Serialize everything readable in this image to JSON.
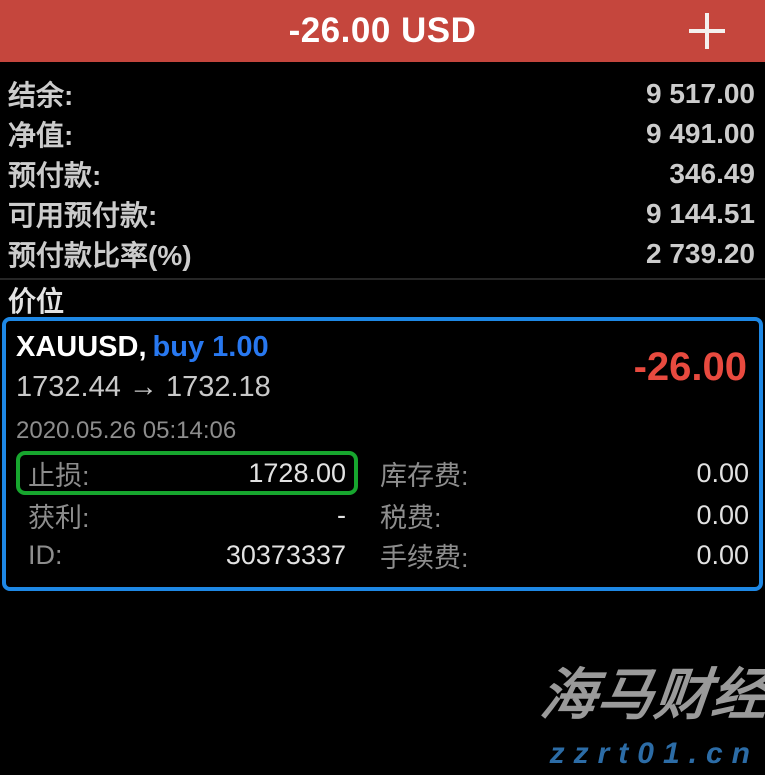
{
  "header": {
    "title": "-26.00 USD",
    "add_button": "new-order"
  },
  "account": {
    "rows": [
      {
        "label": "结余:",
        "value": "9 517.00"
      },
      {
        "label": "净值:",
        "value": "9 491.00"
      },
      {
        "label": "预付款:",
        "value": "346.49"
      },
      {
        "label": "可用预付款:",
        "value": "9 144.51"
      },
      {
        "label": "预付款比率(%)",
        "value": "2 739.20"
      }
    ]
  },
  "positions": {
    "section_title": "价位"
  },
  "position": {
    "symbol": "XAUUSD,",
    "direction": "buy 1.00",
    "profit": "-26.00",
    "open_price": "1732.44",
    "arrow": "→",
    "current_price": "1732.18",
    "datetime": "2020.05.26 05:14:06",
    "details_left": [
      {
        "label": "止损:",
        "value": "1728.00"
      },
      {
        "label": "获利:",
        "value": "-"
      },
      {
        "label": "ID:",
        "value": "30373337"
      }
    ],
    "details_right": [
      {
        "label": "库存费:",
        "value": "0.00"
      },
      {
        "label": "税费:",
        "value": "0.00"
      },
      {
        "label": "手续费:",
        "value": "0.00"
      }
    ]
  },
  "watermark": {
    "brand": "海马财经",
    "site": "zzrt01.cn"
  },
  "colors": {
    "header_bg": "#c5463d",
    "profit_negative": "#e84a3f",
    "buy_blue": "#2878f0",
    "card_border": "#1e88e5",
    "sl_highlight": "#17a62e",
    "text_primary": "#cccccc",
    "text_secondary": "#8d8d8d",
    "watermark_gray": "#9a9a9a",
    "watermark_blue": "#2c6ca6"
  }
}
